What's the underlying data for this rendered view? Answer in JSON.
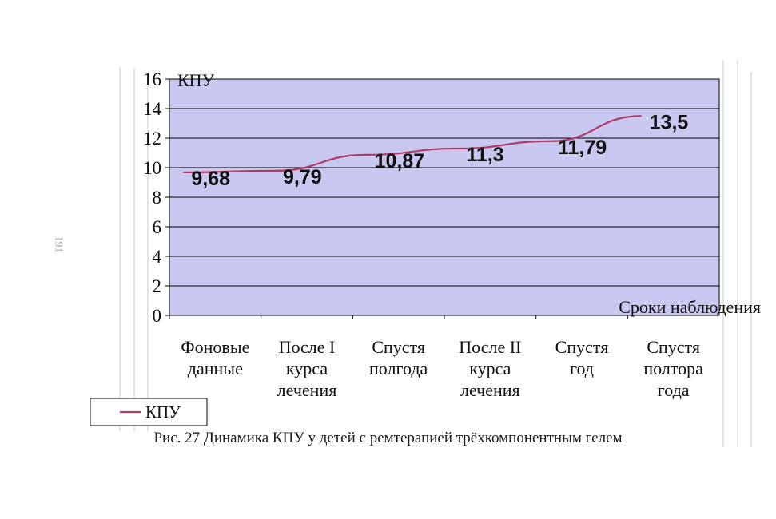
{
  "page": {
    "page_number": "191",
    "caption": "Рис. 27 Динамика КПУ у детей с ремтерапией трёхкомпонентным гелем"
  },
  "chart_data": {
    "type": "line",
    "title": "",
    "xlabel": "Сроки наблюдения",
    "ylabel": "КПУ",
    "ylim": [
      0,
      16
    ],
    "yticks": [
      0,
      2,
      4,
      6,
      8,
      10,
      12,
      14,
      16
    ],
    "grid": true,
    "categories": [
      [
        "Фоновые",
        "данные"
      ],
      [
        "После I",
        "курса",
        "лечения"
      ],
      [
        "Спустя",
        "полгода"
      ],
      [
        "После II",
        "курса",
        "лечения"
      ],
      [
        "Спустя",
        "год"
      ],
      [
        "Спустя",
        "полтора",
        "года"
      ]
    ],
    "series": [
      {
        "name": "КПУ",
        "values": [
          9.68,
          9.79,
          10.87,
          11.3,
          11.79,
          13.5
        ],
        "data_labels": [
          "9,68",
          "9,79",
          "10,87",
          "11,3",
          "11,79",
          "13,5"
        ],
        "color": "#b03a6a"
      }
    ],
    "legend": {
      "position": "bottom-left",
      "entries": [
        "КПУ"
      ]
    },
    "colors": {
      "plot_background": "#c8c8f0",
      "gridline": "#000000",
      "line": "#b03a6a"
    }
  }
}
